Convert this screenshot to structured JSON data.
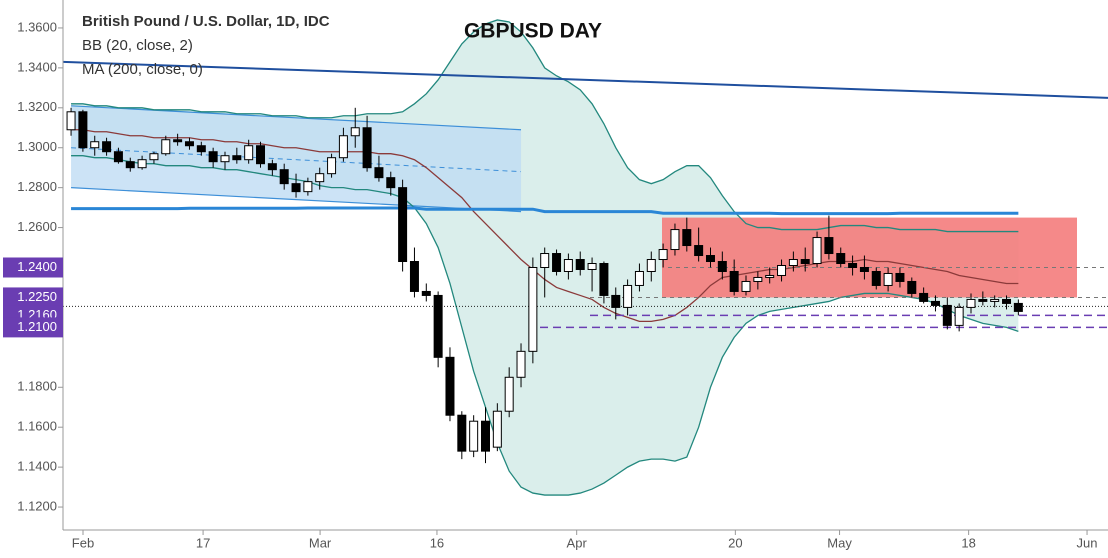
{
  "chart_data": {
    "type": "candlestick",
    "title": "GBPUSD DAY",
    "instrument": "British Pound / U.S. Dollar, 1D, IDC",
    "ylim": [
      1.1085,
      1.374
    ],
    "xlim": [
      -0.68,
      87.57
    ],
    "yticks": [
      {
        "value": 1.36,
        "label": "1.3600"
      },
      {
        "value": 1.34,
        "label": "1.3400"
      },
      {
        "value": 1.32,
        "label": "1.3200"
      },
      {
        "value": 1.3,
        "label": "1.3000"
      },
      {
        "value": 1.28,
        "label": "1.2800"
      },
      {
        "value": 1.26,
        "label": "1.2600"
      },
      {
        "value": 1.18,
        "label": "1.1800"
      },
      {
        "value": 1.16,
        "label": "1.1600"
      },
      {
        "value": 1.14,
        "label": "1.1400"
      },
      {
        "value": 1.12,
        "label": "1.1200"
      }
    ],
    "xticks": [
      {
        "value": 1.01,
        "label": "Feb"
      },
      {
        "value": 11.15,
        "label": "17"
      },
      {
        "value": 21.03,
        "label": "Mar"
      },
      {
        "value": 30.9,
        "label": "16"
      },
      {
        "value": 42.7,
        "label": "Apr"
      },
      {
        "value": 56.1,
        "label": "20"
      },
      {
        "value": 64.9,
        "label": "May"
      },
      {
        "value": 75.8,
        "label": "18"
      },
      {
        "value": 85.8,
        "label": "Jun"
      }
    ],
    "up_color": "#ffffff",
    "down_color": "#000000",
    "open": [
      1.309,
      1.318,
      1.3,
      1.303,
      1.298,
      1.293,
      1.29,
      1.294,
      1.297,
      1.304,
      1.303,
      1.301,
      1.298,
      1.293,
      1.296,
      1.294,
      1.301,
      1.292,
      1.289,
      1.282,
      1.278,
      1.283,
      1.287,
      1.295,
      1.306,
      1.31,
      1.29,
      1.285,
      1.28,
      1.243,
      1.228,
      1.226,
      1.195,
      1.166,
      1.148,
      1.163,
      1.15,
      1.168,
      1.185,
      1.198,
      1.24,
      1.247,
      1.238,
      1.244,
      1.239,
      1.242,
      1.226,
      1.22,
      1.231,
      1.238,
      1.244,
      1.249,
      1.259,
      1.251,
      1.246,
      1.243,
      1.238,
      1.228,
      1.233,
      1.235,
      1.236,
      1.241,
      1.244,
      1.242,
      1.255,
      1.247,
      1.242,
      1.24,
      1.238,
      1.231,
      1.237,
      1.233,
      1.227,
      1.223,
      1.221,
      1.211,
      1.22,
      1.224,
      1.223,
      1.224,
      1.222
    ],
    "high": [
      1.32,
      1.319,
      1.306,
      1.305,
      1.3,
      1.295,
      1.296,
      1.298,
      1.306,
      1.307,
      1.305,
      1.303,
      1.3,
      1.298,
      1.3,
      1.304,
      1.303,
      1.294,
      1.292,
      1.287,
      1.285,
      1.29,
      1.297,
      1.31,
      1.32,
      1.316,
      1.296,
      1.288,
      1.284,
      1.25,
      1.232,
      1.228,
      1.2,
      1.168,
      1.166,
      1.17,
      1.172,
      1.19,
      1.202,
      1.245,
      1.25,
      1.249,
      1.247,
      1.248,
      1.245,
      1.243,
      1.23,
      1.234,
      1.242,
      1.248,
      1.252,
      1.262,
      1.265,
      1.26,
      1.25,
      1.248,
      1.244,
      1.236,
      1.238,
      1.24,
      1.244,
      1.248,
      1.25,
      1.258,
      1.266,
      1.25,
      1.246,
      1.246,
      1.24,
      1.24,
      1.24,
      1.235,
      1.23,
      1.226,
      1.225,
      1.222,
      1.227,
      1.228,
      1.226,
      1.226,
      1.224
    ],
    "low": [
      1.306,
      1.298,
      1.296,
      1.296,
      1.292,
      1.288,
      1.289,
      1.292,
      1.296,
      1.301,
      1.299,
      1.296,
      1.29,
      1.289,
      1.292,
      1.292,
      1.29,
      1.286,
      1.279,
      1.275,
      1.276,
      1.279,
      1.285,
      1.293,
      1.3,
      1.288,
      1.283,
      1.276,
      1.238,
      1.225,
      1.223,
      1.19,
      1.163,
      1.144,
      1.145,
      1.142,
      1.148,
      1.165,
      1.18,
      1.192,
      1.225,
      1.236,
      1.234,
      1.236,
      1.228,
      1.222,
      1.214,
      1.216,
      1.228,
      1.233,
      1.24,
      1.246,
      1.248,
      1.243,
      1.24,
      1.234,
      1.226,
      1.226,
      1.229,
      1.232,
      1.233,
      1.238,
      1.238,
      1.24,
      1.244,
      1.24,
      1.236,
      1.234,
      1.229,
      1.228,
      1.23,
      1.225,
      1.222,
      1.218,
      1.209,
      1.208,
      1.217,
      1.221,
      1.22,
      1.219,
      1.216
    ],
    "close": [
      1.318,
      1.3,
      1.303,
      1.298,
      1.293,
      1.29,
      1.294,
      1.297,
      1.304,
      1.303,
      1.301,
      1.298,
      1.293,
      1.296,
      1.294,
      1.301,
      1.292,
      1.289,
      1.282,
      1.278,
      1.283,
      1.287,
      1.295,
      1.306,
      1.31,
      1.29,
      1.285,
      1.28,
      1.243,
      1.228,
      1.226,
      1.195,
      1.166,
      1.148,
      1.163,
      1.148,
      1.168,
      1.185,
      1.198,
      1.24,
      1.247,
      1.238,
      1.244,
      1.239,
      1.242,
      1.226,
      1.22,
      1.231,
      1.238,
      1.244,
      1.249,
      1.259,
      1.251,
      1.246,
      1.243,
      1.238,
      1.228,
      1.233,
      1.235,
      1.236,
      1.241,
      1.244,
      1.242,
      1.255,
      1.247,
      1.242,
      1.24,
      1.238,
      1.231,
      1.237,
      1.233,
      1.227,
      1.223,
      1.221,
      1.211,
      1.22,
      1.224,
      1.223,
      1.224,
      1.222,
      1.218
    ],
    "series": [
      {
        "name": "BB (20, close, 2)",
        "color": "#23887e",
        "mid_color": "#8b3a3a",
        "fill": "#d3ebe7",
        "upper": [
          1.322,
          1.322,
          1.321,
          1.321,
          1.32,
          1.32,
          1.32,
          1.319,
          1.319,
          1.319,
          1.319,
          1.318,
          1.318,
          1.318,
          1.317,
          1.317,
          1.317,
          1.316,
          1.316,
          1.316,
          1.315,
          1.315,
          1.315,
          1.316,
          1.316,
          1.317,
          1.317,
          1.317,
          1.318,
          1.322,
          1.327,
          1.334,
          1.343,
          1.352,
          1.358,
          1.362,
          1.364,
          1.363,
          1.358,
          1.35,
          1.34,
          1.336,
          1.333,
          1.329,
          1.322,
          1.312,
          1.3,
          1.29,
          1.284,
          1.282,
          1.284,
          1.288,
          1.291,
          1.291,
          1.285,
          1.276,
          1.268,
          1.262,
          1.26,
          1.26,
          1.259,
          1.259,
          1.259,
          1.259,
          1.26,
          1.261,
          1.261,
          1.261,
          1.26,
          1.26,
          1.259,
          1.259,
          1.259,
          1.259,
          1.258,
          1.258,
          1.258,
          1.258,
          1.258,
          1.258,
          1.258
        ],
        "middle": [
          1.309,
          1.309,
          1.308,
          1.308,
          1.307,
          1.306,
          1.306,
          1.305,
          1.305,
          1.305,
          1.305,
          1.304,
          1.304,
          1.303,
          1.303,
          1.302,
          1.302,
          1.301,
          1.3,
          1.3,
          1.299,
          1.298,
          1.298,
          1.298,
          1.298,
          1.298,
          1.297,
          1.297,
          1.296,
          1.294,
          1.29,
          1.285,
          1.28,
          1.275,
          1.268,
          1.262,
          1.256,
          1.25,
          1.244,
          1.239,
          1.234,
          1.23,
          1.228,
          1.226,
          1.224,
          1.22,
          1.217,
          1.215,
          1.213,
          1.213,
          1.214,
          1.216,
          1.22,
          1.225,
          1.231,
          1.235,
          1.236,
          1.237,
          1.238,
          1.239,
          1.239,
          1.24,
          1.241,
          1.242,
          1.243,
          1.243,
          1.243,
          1.244,
          1.243,
          1.243,
          1.242,
          1.241,
          1.24,
          1.239,
          1.238,
          1.236,
          1.235,
          1.234,
          1.233,
          1.232,
          1.232
        ],
        "lower": [
          1.296,
          1.296,
          1.295,
          1.295,
          1.294,
          1.293,
          1.292,
          1.292,
          1.291,
          1.291,
          1.291,
          1.29,
          1.29,
          1.289,
          1.289,
          1.288,
          1.287,
          1.286,
          1.285,
          1.284,
          1.283,
          1.281,
          1.28,
          1.28,
          1.279,
          1.279,
          1.278,
          1.277,
          1.275,
          1.27,
          1.262,
          1.25,
          1.232,
          1.21,
          1.188,
          1.17,
          1.152,
          1.138,
          1.13,
          1.127,
          1.126,
          1.126,
          1.126,
          1.127,
          1.129,
          1.132,
          1.136,
          1.14,
          1.143,
          1.144,
          1.144,
          1.143,
          1.145,
          1.16,
          1.18,
          1.195,
          1.205,
          1.212,
          1.216,
          1.218,
          1.219,
          1.22,
          1.221,
          1.222,
          1.223,
          1.225,
          1.226,
          1.227,
          1.227,
          1.227,
          1.226,
          1.225,
          1.224,
          1.222,
          1.219,
          1.216,
          1.214,
          1.212,
          1.211,
          1.21,
          1.208
        ]
      },
      {
        "name": "MA (200, close, 0)",
        "color": "#2a86d6",
        "values": [
          1.2695,
          1.2695,
          1.2695,
          1.2695,
          1.2695,
          1.2695,
          1.2695,
          1.2695,
          1.2695,
          1.2695,
          1.2697,
          1.2697,
          1.2697,
          1.2697,
          1.2697,
          1.2697,
          1.2697,
          1.2697,
          1.2697,
          1.2697,
          1.2698,
          1.2698,
          1.2698,
          1.2698,
          1.2698,
          1.2698,
          1.2698,
          1.2698,
          1.2698,
          1.2698,
          1.2692,
          1.2692,
          1.2692,
          1.2692,
          1.2692,
          1.2692,
          1.2692,
          1.2692,
          1.2692,
          1.2692,
          1.268,
          1.268,
          1.268,
          1.268,
          1.268,
          1.268,
          1.268,
          1.268,
          1.268,
          1.268,
          1.2672,
          1.2672,
          1.2672,
          1.2672,
          1.2672,
          1.2672,
          1.2672,
          1.2672,
          1.2672,
          1.2672,
          1.267,
          1.267,
          1.267,
          1.267,
          1.267,
          1.267,
          1.267,
          1.267,
          1.267,
          1.267,
          1.2672,
          1.2672,
          1.2672,
          1.2672,
          1.2672,
          1.2672,
          1.2672,
          1.2672,
          1.2672,
          1.2672,
          1.2672
        ]
      }
    ],
    "trendline": {
      "color": "#1f4f9e",
      "values": [
        1.343,
        1.325
      ]
    },
    "channel": {
      "color": "#3d8fd8",
      "upper": [
        1.321,
        1.309
      ],
      "middle": [
        1.3,
        1.288
      ],
      "lower": [
        1.28,
        1.268
      ]
    },
    "zone": {
      "color": "#f47c7c",
      "values": [
        1.265,
        1.225
      ]
    },
    "price_line": 1.2205,
    "price_labels": [
      {
        "value": 1.24,
        "label": "1.2400"
      },
      {
        "value": 1.225,
        "label": "1.2250"
      },
      {
        "value": 1.216,
        "label": "1.2160"
      },
      {
        "value": 1.21,
        "label": "1.2100"
      }
    ],
    "label_color": "#6a3db2"
  }
}
